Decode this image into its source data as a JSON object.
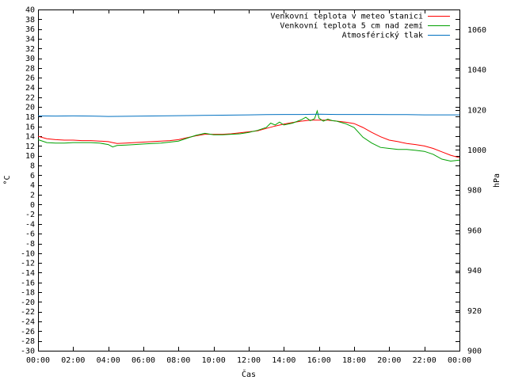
{
  "chart_data": {
    "type": "line",
    "xlabel": "Čas",
    "ylabel": "°C",
    "y2label": "hPa",
    "x_ticks": [
      "00:00",
      "02:00",
      "04:00",
      "06:00",
      "08:00",
      "10:00",
      "12:00",
      "14:00",
      "16:00",
      "18:00",
      "20:00",
      "22:00",
      "00:00"
    ],
    "xlim": [
      0,
      24
    ],
    "ylim": [
      -30,
      40
    ],
    "y_tick_step": 2,
    "y2lim": [
      900,
      1070
    ],
    "y2_ticks": [
      900,
      920,
      940,
      960,
      980,
      1000,
      1020,
      1040,
      1060
    ],
    "grid": false,
    "legend_position": "top-right",
    "series": [
      {
        "name": "Venkovní teplota v meteo stanici",
        "color": "#ff0000",
        "axis": "left",
        "x": [
          0,
          0.5,
          1,
          1.5,
          2,
          2.5,
          3,
          3.5,
          4,
          4.25,
          4.5,
          5,
          5.5,
          6,
          6.5,
          7,
          7.5,
          8,
          8.5,
          9,
          9.5,
          10,
          10.5,
          11,
          11.5,
          12,
          12.5,
          13,
          13.5,
          14,
          14.5,
          15,
          15.5,
          16,
          16.5,
          17,
          17.5,
          18,
          18.5,
          19,
          19.5,
          20,
          20.5,
          21,
          21.5,
          22,
          22.5,
          23,
          23.5,
          24
        ],
        "y": [
          14,
          13.5,
          13.3,
          13.2,
          13.2,
          13.1,
          13.1,
          13,
          12.9,
          12.7,
          12.5,
          12.6,
          12.7,
          12.8,
          12.9,
          13,
          13.1,
          13.3,
          13.7,
          14.1,
          14.4,
          14.4,
          14.4,
          14.5,
          14.7,
          14.9,
          15.1,
          15.6,
          16.1,
          16.5,
          16.8,
          17.1,
          17.3,
          17.3,
          17.3,
          17.1,
          16.9,
          16.6,
          15.8,
          14.8,
          13.9,
          13.2,
          12.9,
          12.5,
          12.3,
          12,
          11.5,
          10.8,
          10.1,
          9.6
        ]
      },
      {
        "name": "Venkovní teplota 5 cm nad zemí",
        "color": "#00a000",
        "axis": "left",
        "x": [
          0,
          0.5,
          1,
          1.5,
          2,
          2.5,
          3,
          3.5,
          4,
          4.25,
          4.5,
          5,
          5.5,
          6,
          6.5,
          7,
          7.5,
          8,
          8.5,
          9,
          9.5,
          10,
          10.5,
          11,
          11.5,
          12,
          12.5,
          13,
          13.25,
          13.5,
          13.75,
          14,
          14.5,
          15,
          15.25,
          15.5,
          15.75,
          15.9,
          16,
          16.25,
          16.5,
          16.75,
          17,
          17.5,
          18,
          18.5,
          19,
          19.5,
          20,
          20.5,
          21,
          21.5,
          22,
          22.5,
          23,
          23.5,
          24
        ],
        "y": [
          13.3,
          12.7,
          12.6,
          12.6,
          12.7,
          12.7,
          12.7,
          12.6,
          12.3,
          11.8,
          12.1,
          12.2,
          12.3,
          12.4,
          12.5,
          12.6,
          12.8,
          13,
          13.6,
          14.2,
          14.6,
          14.3,
          14.3,
          14.4,
          14.5,
          14.8,
          15.2,
          15.8,
          16.7,
          16.3,
          16.9,
          16.3,
          16.7,
          17.4,
          17.9,
          17.2,
          17.6,
          19.2,
          17.7,
          17.1,
          17.5,
          17.2,
          17.1,
          16.6,
          15.8,
          13.8,
          12.6,
          11.7,
          11.5,
          11.3,
          11.3,
          11.1,
          10.9,
          10.3,
          9.3,
          8.9,
          9.1
        ]
      },
      {
        "name": "Atmosférický tlak",
        "color": "#0070c0",
        "axis": "right",
        "x": [
          0,
          1,
          2,
          3,
          4,
          5,
          6,
          7,
          8,
          9,
          10,
          11,
          12,
          13,
          14,
          15,
          16,
          17,
          18,
          19,
          20,
          21,
          22,
          23,
          24
        ],
        "y": [
          1017,
          1016.9,
          1017,
          1016.9,
          1016.7,
          1016.8,
          1016.9,
          1017,
          1017.1,
          1017.2,
          1017.3,
          1017.4,
          1017.5,
          1017.6,
          1017.7,
          1017.7,
          1017.8,
          1017.7,
          1017.7,
          1017.7,
          1017.6,
          1017.6,
          1017.5,
          1017.5,
          1017.5
        ]
      }
    ]
  }
}
